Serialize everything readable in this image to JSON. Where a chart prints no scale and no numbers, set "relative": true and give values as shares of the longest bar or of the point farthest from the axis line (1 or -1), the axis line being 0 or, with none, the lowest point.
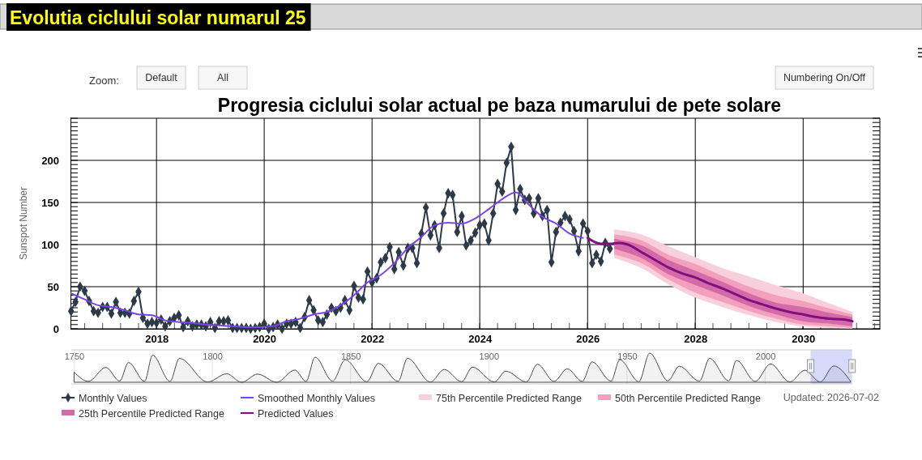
{
  "chart_data": [
    {
      "type": "line",
      "title": "Evolutia ciclului solar numarul 25",
      "subtitle": "Progresia ciclului solar actual pe baza numarului de pete solare",
      "ylabel": "Sunspot Number",
      "annotations": [
        "Zoom:",
        "Default",
        "All",
        "Numbering On/Off",
        "Updated: 2026-07-02"
      ],
      "xlim": [
        "2016-05-28",
        "2031-06-05"
      ],
      "xticks": [
        "2018",
        "2020",
        "2022",
        "2024",
        "2026",
        "2028",
        "2030"
      ],
      "ylim": [
        0,
        250
      ],
      "yticks": [
        0,
        50,
        100,
        150,
        200
      ],
      "grid": true,
      "legend": "bottom",
      "series": [
        {
          "name": "Monthly Values",
          "marker": "diamond",
          "color": "#2c3a48",
          "x": [
            "2016-06",
            "2016-07",
            "2016-08",
            "2016-09",
            "2016-10",
            "2016-11",
            "2016-12",
            "2017-01",
            "2017-02",
            "2017-03",
            "2017-04",
            "2017-05",
            "2017-06",
            "2017-07",
            "2017-08",
            "2017-09",
            "2017-10",
            "2017-11",
            "2017-12",
            "2018-01",
            "2018-02",
            "2018-03",
            "2018-04",
            "2018-05",
            "2018-06",
            "2018-07",
            "2018-08",
            "2018-09",
            "2018-10",
            "2018-11",
            "2018-12",
            "2019-01",
            "2019-02",
            "2019-03",
            "2019-04",
            "2019-05",
            "2019-06",
            "2019-07",
            "2019-08",
            "2019-09",
            "2019-10",
            "2019-11",
            "2019-12",
            "2020-01",
            "2020-02",
            "2020-03",
            "2020-04",
            "2020-05",
            "2020-06",
            "2020-07",
            "2020-08",
            "2020-09",
            "2020-10",
            "2020-11",
            "2020-12",
            "2021-01",
            "2021-02",
            "2021-03",
            "2021-04",
            "2021-05",
            "2021-06",
            "2021-07",
            "2021-08",
            "2021-09",
            "2021-10",
            "2021-11",
            "2021-12",
            "2022-01",
            "2022-02",
            "2022-03",
            "2022-04",
            "2022-05",
            "2022-06",
            "2022-07",
            "2022-08",
            "2022-09",
            "2022-10",
            "2022-11",
            "2022-12",
            "2023-01",
            "2023-02",
            "2023-03",
            "2023-04",
            "2023-05",
            "2023-06",
            "2023-07",
            "2023-08",
            "2023-09",
            "2023-10",
            "2023-11",
            "2023-12",
            "2024-01",
            "2024-02",
            "2024-03",
            "2024-04",
            "2024-05",
            "2024-06",
            "2024-07",
            "2024-08",
            "2024-09",
            "2024-10",
            "2024-11",
            "2024-12",
            "2025-01",
            "2025-02",
            "2025-03",
            "2025-04",
            "2025-05",
            "2025-06",
            "2025-07",
            "2025-08",
            "2025-09",
            "2025-10",
            "2025-11",
            "2025-12",
            "2026-01",
            "2026-02",
            "2026-03",
            "2026-04",
            "2026-05",
            "2026-06"
          ],
          "values": [
            21,
            32,
            50,
            45,
            33,
            21,
            19,
            26,
            26,
            18,
            32,
            19,
            19,
            18,
            33,
            44,
            13,
            6,
            8,
            7,
            11,
            3,
            9,
            13,
            16,
            2,
            9,
            3,
            5,
            5,
            3,
            8,
            1,
            9,
            9,
            10,
            1,
            1,
            1,
            1,
            0,
            1,
            2,
            6,
            0,
            2,
            5,
            0,
            6,
            6,
            8,
            1,
            14,
            34,
            22,
            10,
            8,
            17,
            25,
            21,
            25,
            34,
            22,
            51,
            37,
            35,
            68,
            55,
            60,
            79,
            84,
            97,
            71,
            91,
            75,
            96,
            96,
            78,
            113,
            144,
            111,
            123,
            96,
            137,
            161,
            159,
            115,
            134,
            99,
            105,
            114,
            123,
            125,
            105,
            137,
            172,
            163,
            197,
            216,
            141,
            166,
            153,
            155,
            137,
            155,
            134,
            141,
            79,
            115,
            126,
            134,
            130,
            116,
            92,
            125,
            116,
            78,
            88,
            80,
            102,
            95
          ]
        },
        {
          "name": "Smoothed Monthly Values",
          "color": "#7b44e6",
          "x": [
            "2016-06",
            "2016-09",
            "2016-12",
            "2017-03",
            "2017-06",
            "2017-09",
            "2017-12",
            "2018-03",
            "2018-06",
            "2018-09",
            "2018-12",
            "2019-03",
            "2019-06",
            "2019-09",
            "2019-12",
            "2020-03",
            "2020-06",
            "2020-09",
            "2020-12",
            "2021-03",
            "2021-06",
            "2021-09",
            "2021-12",
            "2022-03",
            "2022-06",
            "2022-09",
            "2022-12",
            "2023-03",
            "2023-06",
            "2023-09",
            "2023-12",
            "2024-03",
            "2024-06",
            "2024-09",
            "2024-12",
            "2025-03",
            "2025-06",
            "2025-09",
            "2025-12"
          ],
          "values": [
            42,
            35,
            28,
            26,
            22,
            17,
            16,
            10,
            8,
            7,
            5,
            4,
            3,
            2,
            2,
            3,
            9,
            12,
            17,
            20,
            28,
            40,
            55,
            64,
            78,
            96,
            109,
            123,
            126,
            125,
            131,
            142,
            154,
            162,
            147,
            133,
            125,
            113,
            108
          ]
        },
        {
          "name": "75th Percentile Predicted Range",
          "type": "area",
          "color": "#f8cfdc",
          "x": [
            "2026-07",
            "2027-01",
            "2027-07",
            "2028-01",
            "2028-07",
            "2029-01",
            "2029-07",
            "2030-01",
            "2030-07",
            "2030-12"
          ],
          "values": [
            null,
            null,
            null,
            null,
            null,
            null,
            null,
            null,
            null,
            null
          ],
          "lower": [
            84,
            72,
            53,
            37,
            26,
            16,
            8,
            3,
            1,
            0
          ],
          "upper": [
            118,
            112,
            98,
            85,
            72,
            62,
            52,
            42,
            30,
            20
          ]
        },
        {
          "name": "50th Percentile Predicted Range",
          "type": "area",
          "color": "#f2a0bb",
          "x": [
            "2026-07",
            "2027-01",
            "2027-07",
            "2028-01",
            "2028-07",
            "2029-01",
            "2029-07",
            "2030-01",
            "2030-07",
            "2030-12"
          ],
          "values": [
            null,
            null,
            null,
            null,
            null,
            null,
            null,
            null,
            null,
            null
          ],
          "lower": [
            88,
            78,
            59,
            43,
            32,
            21,
            12,
            5,
            3,
            1
          ],
          "upper": [
            112,
            105,
            88,
            77,
            63,
            50,
            40,
            33,
            24,
            17
          ]
        },
        {
          "name": "25th Percentile Predicted Range",
          "type": "area",
          "color": "#d56aa8",
          "x": [
            "2026-07",
            "2027-01",
            "2027-07",
            "2028-01",
            "2028-07",
            "2029-01",
            "2029-07",
            "2030-01",
            "2030-07",
            "2030-12"
          ],
          "values": [
            null,
            null,
            null,
            null,
            null,
            null,
            null,
            null,
            null,
            null
          ],
          "lower": [
            95,
            84,
            65,
            52,
            40,
            27,
            17,
            9,
            6,
            3
          ],
          "upper": [
            107,
            99,
            82,
            69,
            56,
            42,
            31,
            26,
            19,
            14
          ]
        },
        {
          "name": "Predicted Values",
          "color": "#80107f",
          "x": [
            "2026-01",
            "2026-04",
            "2026-06",
            "2026-08",
            "2026-10",
            "2027-01",
            "2027-04",
            "2027-07",
            "2027-10",
            "2028-01",
            "2028-04",
            "2028-07",
            "2028-10",
            "2029-01",
            "2029-04",
            "2029-07",
            "2029-10",
            "2030-01",
            "2030-04",
            "2030-07",
            "2030-10",
            "2030-12"
          ],
          "values": [
            108,
            101,
            101,
            102,
            100,
            91,
            82,
            73,
            66,
            61,
            54,
            48,
            41,
            34,
            29,
            24,
            20,
            17,
            14,
            12,
            11,
            9
          ]
        }
      ]
    },
    {
      "type": "area",
      "relative": true,
      "tick_labels": "x",
      "grid": "x",
      "xlim": [
        1749,
        2031.5
      ],
      "xticks": [
        1750,
        1800,
        1850,
        1900,
        1950,
        2000
      ],
      "bands": [
        {
          "axis": "x",
          "from": 2016.4,
          "to": 2031.4,
          "color": "#ccd0f8"
        }
      ],
      "series": [
        {
          "color": "#4a4a4a",
          "x": [
            1750,
            1755.2,
            1761.5,
            1766.5,
            1769.7,
            1775.5,
            1778.4,
            1784.7,
            1788.1,
            1798.3,
            1805.2,
            1810.6,
            1816.4,
            1823.3,
            1829.9,
            1833.9,
            1837.2,
            1843.5,
            1848.1,
            1855.9,
            1860.1,
            1867.2,
            1870.6,
            1878.9,
            1883.9,
            1890.2,
            1894.1,
            1902.0,
            1906.2,
            1913.6,
            1917.6,
            1923.6,
            1928.4,
            1933.8,
            1937.4,
            1944.2,
            1947.4,
            1954.3,
            1958.2,
            1964.8,
            1968.9,
            1976.2,
            1979.9,
            1986.8,
            1989.6,
            1996.4,
            2001.9,
            2008.9,
            2014.3,
            2019.9,
            2024.8,
            2030.9
          ],
          "values": [
            0.35,
            0.03,
            0.51,
            0.04,
            0.68,
            0.03,
            0.93,
            0.03,
            0.82,
            0.01,
            0.29,
            0.0,
            0.28,
            0.0,
            0.42,
            0.03,
            0.86,
            0.04,
            0.77,
            0.02,
            0.65,
            0.03,
            0.82,
            0.01,
            0.44,
            0.02,
            0.52,
            0.01,
            0.38,
            0.01,
            0.62,
            0.03,
            0.46,
            0.03,
            0.7,
            0.04,
            0.77,
            0.02,
            1.0,
            0.05,
            0.55,
            0.04,
            0.82,
            0.05,
            0.75,
            0.03,
            0.63,
            0.01,
            0.41,
            0.01,
            0.56,
            0.03
          ]
        }
      ]
    }
  ]
}
